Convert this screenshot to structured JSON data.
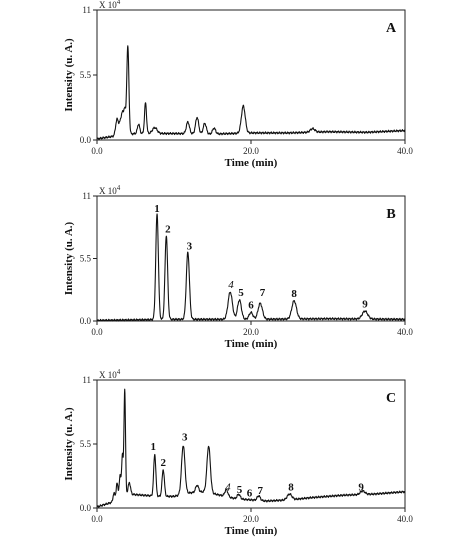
{
  "chart_data": [
    {
      "type": "line",
      "panel_label": "A",
      "scale_label": "X 10",
      "scale_exp": "4",
      "xlabel": "Time (min)",
      "ylabel": "Intensity (u. A.)",
      "xlim": [
        0,
        40
      ],
      "ylim": [
        0,
        11
      ],
      "x_ticks": [
        {
          "v": 0,
          "label": "0.0"
        },
        {
          "v": 20,
          "label": "20.0"
        },
        {
          "v": 40,
          "label": "40.0"
        }
      ],
      "y_ticks": [
        {
          "v": 0,
          "label": "0.0"
        },
        {
          "v": 5.5,
          "label": "5.5"
        },
        {
          "v": 11,
          "label": "11"
        }
      ],
      "baseline": [
        [
          0,
          0.1
        ],
        [
          2,
          0.3
        ],
        [
          5,
          0.55
        ],
        [
          10,
          0.55
        ],
        [
          15,
          0.5
        ],
        [
          20,
          0.6
        ],
        [
          25,
          0.6
        ],
        [
          30,
          0.7
        ],
        [
          35,
          0.65
        ],
        [
          40,
          0.8
        ]
      ],
      "peaks": [
        {
          "t": 2.6,
          "h": 1.4,
          "w": 0.18
        },
        {
          "t": 3.0,
          "h": 0.9,
          "w": 0.15
        },
        {
          "t": 3.3,
          "h": 1.8,
          "w": 0.15
        },
        {
          "t": 3.6,
          "h": 2.0,
          "w": 0.12
        },
        {
          "t": 4.0,
          "h": 7.5,
          "w": 0.14
        },
        {
          "t": 5.4,
          "h": 0.8,
          "w": 0.15
        },
        {
          "t": 6.3,
          "h": 2.6,
          "w": 0.13
        },
        {
          "t": 7.5,
          "h": 0.5,
          "w": 0.3
        },
        {
          "t": 11.8,
          "h": 1.0,
          "w": 0.2
        },
        {
          "t": 13.0,
          "h": 1.4,
          "w": 0.2
        },
        {
          "t": 14.0,
          "h": 0.9,
          "w": 0.2
        },
        {
          "t": 15.2,
          "h": 0.5,
          "w": 0.2
        },
        {
          "t": 19.0,
          "h": 2.3,
          "w": 0.25
        },
        {
          "t": 28.0,
          "h": 0.3,
          "w": 0.3
        }
      ],
      "peak_labels": []
    },
    {
      "type": "line",
      "panel_label": "B",
      "scale_label": "X 10",
      "scale_exp": "4",
      "xlabel": "Time (min)",
      "ylabel": "Intensity (u. A.)",
      "xlim": [
        0,
        40
      ],
      "ylim": [
        0,
        11
      ],
      "x_ticks": [
        {
          "v": 0,
          "label": "0.0"
        },
        {
          "v": 20,
          "label": "20.0"
        },
        {
          "v": 40,
          "label": "40.0"
        }
      ],
      "y_ticks": [
        {
          "v": 0,
          "label": "0.0"
        },
        {
          "v": 5.5,
          "label": "5.5"
        },
        {
          "v": 11,
          "label": "11"
        }
      ],
      "baseline": [
        [
          0,
          0.05
        ],
        [
          5,
          0.1
        ],
        [
          10,
          0.15
        ],
        [
          20,
          0.15
        ],
        [
          30,
          0.2
        ],
        [
          40,
          0.15
        ]
      ],
      "peaks": [
        {
          "t": 7.8,
          "h": 9.3,
          "w": 0.17
        },
        {
          "t": 9.0,
          "h": 7.4,
          "w": 0.17
        },
        {
          "t": 11.8,
          "h": 5.9,
          "w": 0.2
        },
        {
          "t": 17.3,
          "h": 2.4,
          "w": 0.28
        },
        {
          "t": 18.5,
          "h": 1.7,
          "w": 0.25
        },
        {
          "t": 20.0,
          "h": 0.6,
          "w": 0.25
        },
        {
          "t": 21.2,
          "h": 1.4,
          "w": 0.28
        },
        {
          "t": 25.6,
          "h": 1.6,
          "w": 0.3
        },
        {
          "t": 34.8,
          "h": 0.7,
          "w": 0.35
        }
      ],
      "peak_labels": [
        {
          "text": "1",
          "t": 7.8,
          "y": 9.6,
          "italic": false
        },
        {
          "text": "2",
          "t": 9.2,
          "y": 7.8,
          "italic": false
        },
        {
          "text": "3",
          "t": 12.0,
          "y": 6.3,
          "italic": false
        },
        {
          "text": "4",
          "t": 17.4,
          "y": 2.9,
          "italic": true
        },
        {
          "text": "5",
          "t": 18.7,
          "y": 2.2,
          "italic": false
        },
        {
          "text": "6",
          "t": 20.0,
          "y": 1.1,
          "italic": false
        },
        {
          "text": "7",
          "t": 21.5,
          "y": 2.2,
          "italic": false
        },
        {
          "text": "8",
          "t": 25.6,
          "y": 2.1,
          "italic": false
        },
        {
          "text": "9",
          "t": 34.8,
          "y": 1.2,
          "italic": false
        }
      ]
    },
    {
      "type": "line",
      "panel_label": "C",
      "scale_label": "X 10",
      "scale_exp": "4",
      "xlabel": "Time (min)",
      "ylabel": "Intensity (u. A.)",
      "xlim": [
        0,
        40
      ],
      "ylim": [
        0,
        11
      ],
      "x_ticks": [
        {
          "v": 0,
          "label": "0.0"
        },
        {
          "v": 20,
          "label": "20.0"
        },
        {
          "v": 40,
          "label": "40.0"
        }
      ],
      "y_ticks": [
        {
          "v": 0,
          "label": "0.0"
        },
        {
          "v": 5.5,
          "label": "5.5"
        },
        {
          "v": 11,
          "label": "11"
        }
      ],
      "baseline": [
        [
          0,
          0.1
        ],
        [
          2,
          0.5
        ],
        [
          4,
          1.2
        ],
        [
          6,
          1.1
        ],
        [
          8,
          1.0
        ],
        [
          10,
          1.0
        ],
        [
          12,
          1.3
        ],
        [
          14,
          1.4
        ],
        [
          16,
          1.1
        ],
        [
          18,
          0.8
        ],
        [
          20,
          0.7
        ],
        [
          22,
          0.6
        ],
        [
          25,
          0.7
        ],
        [
          28,
          0.9
        ],
        [
          32,
          1.1
        ],
        [
          36,
          1.2
        ],
        [
          40,
          1.4
        ]
      ],
      "peaks": [
        {
          "t": 2.2,
          "h": 0.7,
          "w": 0.12
        },
        {
          "t": 2.6,
          "h": 1.4,
          "w": 0.12
        },
        {
          "t": 3.0,
          "h": 1.9,
          "w": 0.12
        },
        {
          "t": 3.3,
          "h": 3.5,
          "w": 0.1
        },
        {
          "t": 3.6,
          "h": 9.1,
          "w": 0.1
        },
        {
          "t": 4.2,
          "h": 1.0,
          "w": 0.15
        },
        {
          "t": 7.5,
          "h": 3.6,
          "w": 0.14
        },
        {
          "t": 8.6,
          "h": 2.3,
          "w": 0.15
        },
        {
          "t": 11.2,
          "h": 4.2,
          "w": 0.22
        },
        {
          "t": 13.0,
          "h": 0.6,
          "w": 0.2
        },
        {
          "t": 14.5,
          "h": 4.0,
          "w": 0.22
        },
        {
          "t": 16.8,
          "h": 0.6,
          "w": 0.2
        },
        {
          "t": 18.4,
          "h": 0.4,
          "w": 0.2
        },
        {
          "t": 21.0,
          "h": 0.4,
          "w": 0.2
        },
        {
          "t": 25.0,
          "h": 0.5,
          "w": 0.3
        },
        {
          "t": 34.5,
          "h": 0.3,
          "w": 0.3
        }
      ],
      "peak_labels": [
        {
          "text": "1",
          "t": 7.3,
          "y": 5.0,
          "italic": false
        },
        {
          "text": "2",
          "t": 8.6,
          "y": 3.6,
          "italic": false
        },
        {
          "text": "3",
          "t": 11.4,
          "y": 5.8,
          "italic": false
        },
        {
          "text": "4",
          "t": 17.0,
          "y": 1.5,
          "italic": true
        },
        {
          "text": "5",
          "t": 18.5,
          "y": 1.3,
          "italic": false
        },
        {
          "text": "6",
          "t": 19.8,
          "y": 1.0,
          "italic": false
        },
        {
          "text": "7",
          "t": 21.2,
          "y": 1.2,
          "italic": false
        },
        {
          "text": "8",
          "t": 25.2,
          "y": 1.5,
          "italic": false
        },
        {
          "text": "9",
          "t": 34.3,
          "y": 1.5,
          "italic": false
        }
      ]
    }
  ]
}
